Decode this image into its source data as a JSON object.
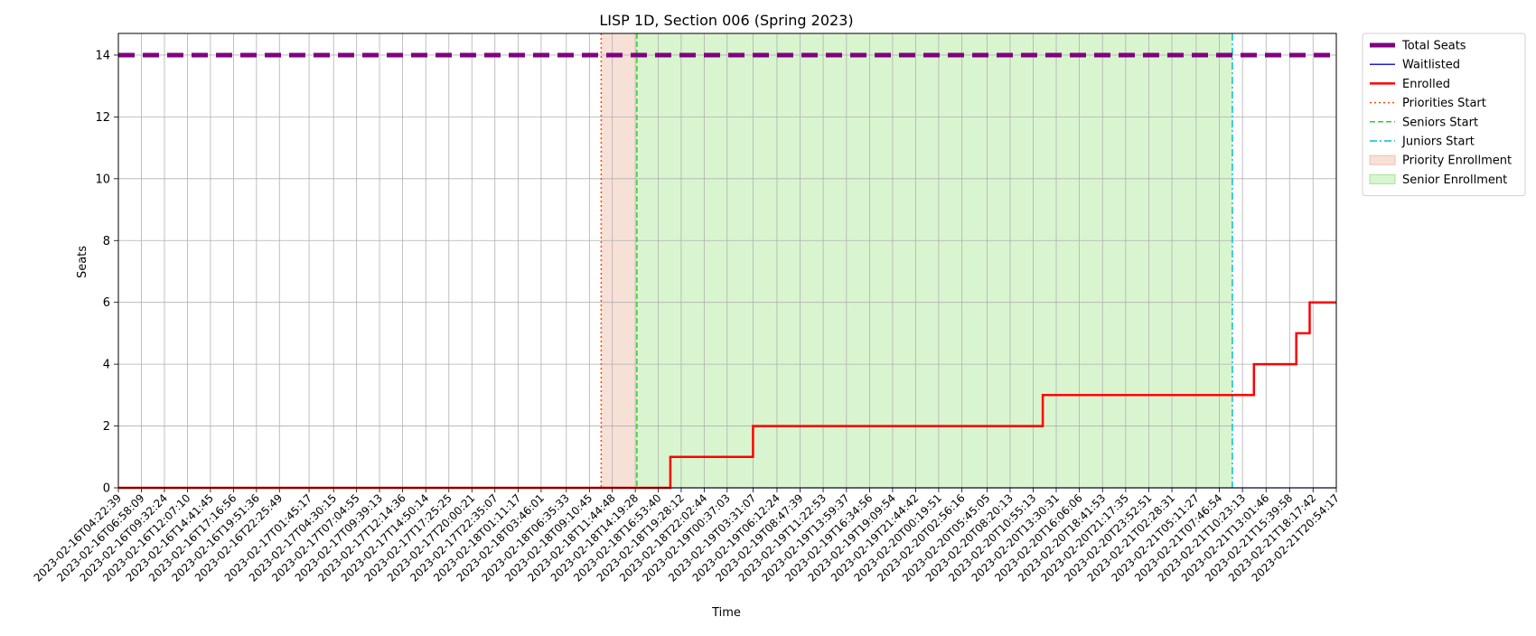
{
  "chart_data": {
    "type": "line",
    "title": "LISP 1D, Section 006 (Spring 2023)",
    "xlabel": "Time",
    "ylabel": "Seats",
    "ylim": [
      0,
      14.7
    ],
    "yticks": [
      0,
      2,
      4,
      6,
      8,
      10,
      12,
      14
    ],
    "xlim": [
      "2023-02-16T04:22:39",
      "2023-02-21T20:54:17"
    ],
    "xticks": [
      "2023-02-16T04:22:39",
      "2023-02-16T06:58:09",
      "2023-02-16T09:32:24",
      "2023-02-16T12:07:10",
      "2023-02-16T14:41:45",
      "2023-02-16T17:16:56",
      "2023-02-16T19:51:36",
      "2023-02-16T22:25:49",
      "2023-02-17T01:45:17",
      "2023-02-17T04:30:15",
      "2023-02-17T07:04:55",
      "2023-02-17T09:39:13",
      "2023-02-17T12:14:36",
      "2023-02-17T14:50:14",
      "2023-02-17T17:25:25",
      "2023-02-17T20:00:21",
      "2023-02-17T22:35:07",
      "2023-02-18T01:11:17",
      "2023-02-18T03:46:01",
      "2023-02-18T06:35:33",
      "2023-02-18T09:10:45",
      "2023-02-18T11:44:48",
      "2023-02-18T14:19:28",
      "2023-02-18T16:53:40",
      "2023-02-18T19:28:12",
      "2023-02-18T22:02:44",
      "2023-02-19T00:37:03",
      "2023-02-19T03:31:07",
      "2023-02-19T06:12:24",
      "2023-02-19T08:47:39",
      "2023-02-19T11:22:53",
      "2023-02-19T13:59:37",
      "2023-02-19T16:34:56",
      "2023-02-19T19:09:54",
      "2023-02-19T21:44:42",
      "2023-02-20T00:19:51",
      "2023-02-20T02:56:16",
      "2023-02-20T05:45:05",
      "2023-02-20T08:20:13",
      "2023-02-20T10:55:13",
      "2023-02-20T13:30:31",
      "2023-02-20T16:06:06",
      "2023-02-20T18:41:53",
      "2023-02-20T21:17:35",
      "2023-02-20T23:52:51",
      "2023-02-21T02:28:31",
      "2023-02-21T05:11:27",
      "2023-02-21T07:46:54",
      "2023-02-21T10:23:13",
      "2023-02-21T13:01:46",
      "2023-02-21T15:39:58",
      "2023-02-21T18:17:42",
      "2023-02-21T20:54:17"
    ],
    "grid": true,
    "legend_position": "outside-right-top",
    "series": [
      {
        "name": "Total Seats",
        "style": "dashed-thick",
        "color": "#800080",
        "x": [
          "2023-02-16T04:22:39",
          "2023-02-21T20:54:17"
        ],
        "y": [
          14,
          14
        ]
      },
      {
        "name": "Waitlisted",
        "style": "solid-thin",
        "color": "#1f1fe0",
        "x": [
          "2023-02-16T04:22:39",
          "2023-02-21T20:54:17"
        ],
        "y": [
          0,
          0
        ]
      },
      {
        "name": "Enrolled",
        "style": "step",
        "color": "#ff0000",
        "x": [
          "2023-02-16T04:22:39",
          "2023-02-18T18:15:00",
          "2023-02-18T18:15:00",
          "2023-02-19T03:31:07",
          "2023-02-19T03:31:07",
          "2023-02-20T12:00:00",
          "2023-02-20T12:00:00",
          "2023-02-21T11:40:00",
          "2023-02-21T11:40:00",
          "2023-02-21T16:25:00",
          "2023-02-21T16:25:00",
          "2023-02-21T17:55:00",
          "2023-02-21T17:55:00",
          "2023-02-21T20:54:17"
        ],
        "y": [
          0,
          0,
          1,
          1,
          2,
          2,
          3,
          3,
          4,
          4,
          5,
          5,
          6,
          6
        ]
      }
    ],
    "vlines": [
      {
        "name": "Priorities Start",
        "x": "2023-02-18T10:30:00",
        "color": "#ff4500",
        "style": "dotted"
      },
      {
        "name": "Seniors Start",
        "x": "2023-02-18T14:30:00",
        "color": "#32cd32",
        "style": "dashed"
      },
      {
        "name": "Juniors Start",
        "x": "2023-02-21T09:15:00",
        "color": "#00bfd8",
        "style": "dashdot"
      }
    ],
    "spans": [
      {
        "name": "Priority Enrollment",
        "x0": "2023-02-18T10:30:00",
        "x1": "2023-02-18T14:30:00",
        "color": "#f7e1d7"
      },
      {
        "name": "Senior Enrollment",
        "x0": "2023-02-18T14:30:00",
        "x1": "2023-02-21T09:15:00",
        "color": "#d9f5d0"
      }
    ],
    "legend": [
      "Total Seats",
      "Waitlisted",
      "Enrolled",
      "Priorities Start",
      "Seniors Start",
      "Juniors Start",
      "Priority Enrollment",
      "Senior Enrollment"
    ]
  }
}
